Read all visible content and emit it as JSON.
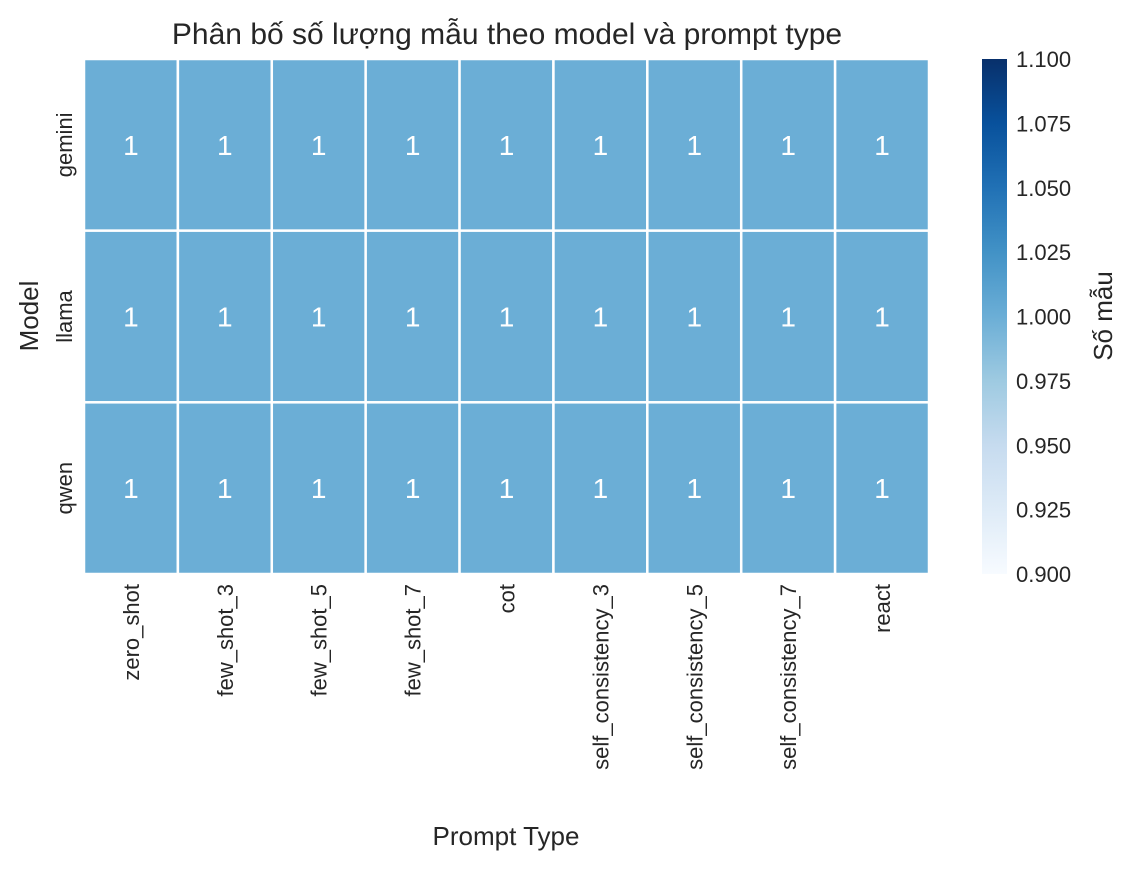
{
  "chart_data": {
    "type": "heatmap",
    "title": "Phân bố số lượng mẫu theo model và prompt type",
    "xlabel": "Prompt Type",
    "ylabel": "Model",
    "x_categories": [
      "zero_shot",
      "few_shot_3",
      "few_shot_5",
      "few_shot_7",
      "cot",
      "self_consistency_3",
      "self_consistency_5",
      "self_consistency_7",
      "react"
    ],
    "y_categories": [
      "gemini",
      "llama",
      "qwen"
    ],
    "values": [
      [
        1,
        1,
        1,
        1,
        1,
        1,
        1,
        1,
        1
      ],
      [
        1,
        1,
        1,
        1,
        1,
        1,
        1,
        1,
        1
      ],
      [
        1,
        1,
        1,
        1,
        1,
        1,
        1,
        1,
        1
      ]
    ],
    "annotations_shown": true,
    "colormap": "Blues",
    "colorbar": {
      "label": "Số mẫu",
      "range": [
        0.9,
        1.1
      ],
      "ticks": [
        "0.900",
        "0.925",
        "0.950",
        "0.975",
        "1.000",
        "1.025",
        "1.050",
        "1.075",
        "1.100"
      ]
    },
    "colors": {
      "cell_fill": "#6baed6",
      "cell_border": "#ffffff",
      "colormap_low": "#f7fbff",
      "colormap_high": "#08306b"
    }
  }
}
